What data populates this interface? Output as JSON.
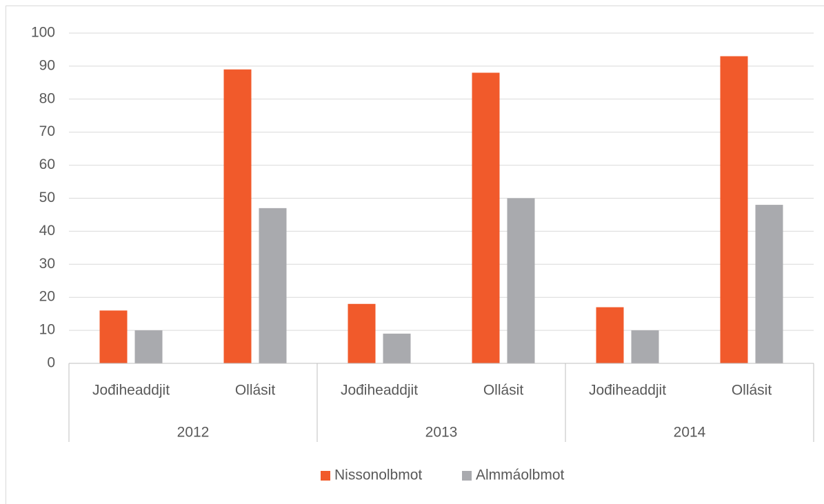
{
  "chart_data": {
    "type": "bar",
    "categories": [
      "Jođiheaddjit",
      "Ollásit",
      "Jođiheaddjit",
      "Ollásit",
      "Jođiheaddjit",
      "Ollásit"
    ],
    "groups": [
      "2012",
      "2013",
      "2014"
    ],
    "series": [
      {
        "name": "Nissonolbmot",
        "color": "#f15a2b",
        "values": [
          16,
          89,
          18,
          88,
          17,
          93
        ]
      },
      {
        "name": "Almmáolbmot",
        "color": "#a9aaae",
        "values": [
          10,
          47,
          9,
          50,
          10,
          48
        ]
      }
    ],
    "ylim": [
      0,
      100
    ],
    "yticks": [
      0,
      10,
      20,
      30,
      40,
      50,
      60,
      70,
      80,
      90,
      100
    ],
    "grid": true,
    "legend": "bottom"
  }
}
